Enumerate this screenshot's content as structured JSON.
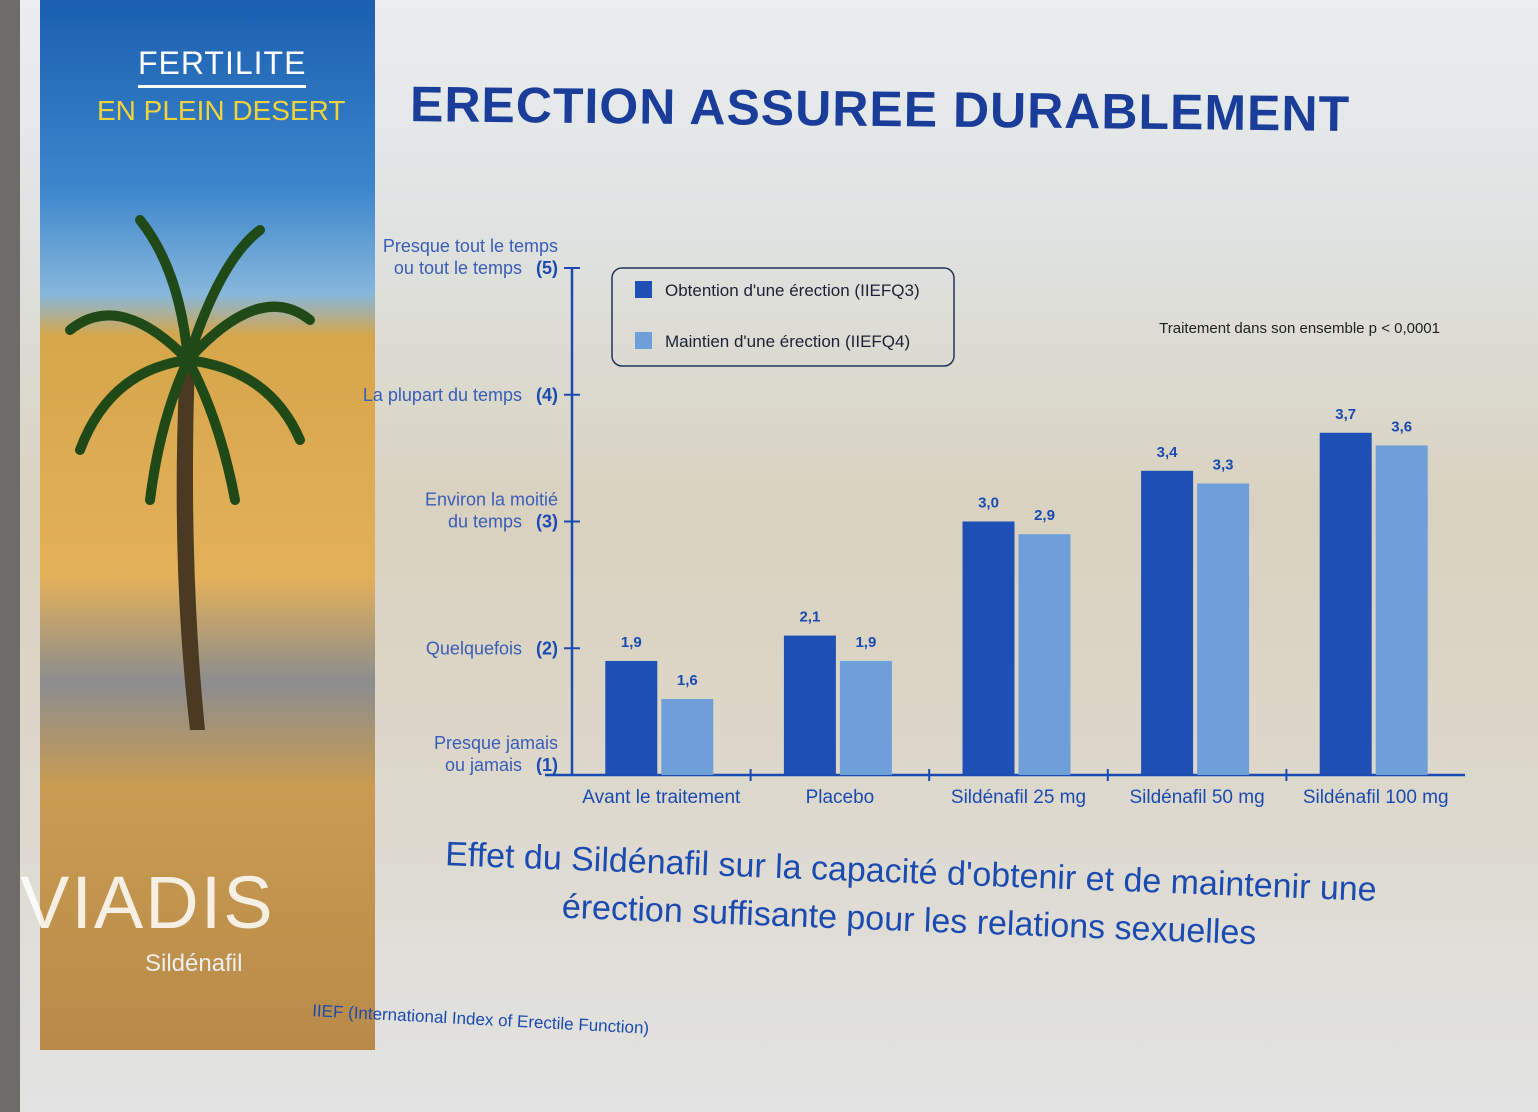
{
  "brand": {
    "line1": "FERTILITE",
    "line2": "EN PLEIN DESERT",
    "product": "VIADIS",
    "generic": "Sildénafil"
  },
  "title": "ERECTION ASSUREE DURABLEMENT",
  "caption": "Effet du Sildénafil sur la capacité d'obtenir et de maintenir une érection suffisante pour les relations sexuelles",
  "footnote": "IIEF (International Index of Erectile Function)",
  "chart_data": {
    "type": "bar",
    "title": "ERECTION ASSUREE DURABLEMENT",
    "annotation": "Traitement dans son ensemble p < 0,0001",
    "categories": [
      "Avant le traitement",
      "Placebo",
      "Sildénafil 25 mg",
      "Sildénafil 50 mg",
      "Sildénafil 100 mg"
    ],
    "series": [
      {
        "name": "Obtention d'une érection (IIEFQ3)",
        "color": "#1e4fb4",
        "values": [
          1.9,
          2.1,
          3.0,
          3.4,
          3.7
        ],
        "labels": [
          "1,9",
          "2,1",
          "3,0",
          "3,4",
          "3,7"
        ]
      },
      {
        "name": "Maintien d'une érection (IIEFQ4)",
        "color": "#6f9fd8",
        "values": [
          1.6,
          1.9,
          2.9,
          3.3,
          3.6
        ],
        "labels": [
          "1,6",
          "1,9",
          "2,9",
          "3,3",
          "3,6"
        ]
      }
    ],
    "ylim": [
      1,
      5
    ],
    "yticks": [
      {
        "value": 1,
        "label": [
          "Presque jamais",
          "ou jamais"
        ],
        "num": "(1)"
      },
      {
        "value": 2,
        "label": [
          "Quelquefois"
        ],
        "num": "(2)"
      },
      {
        "value": 3,
        "label": [
          "Environ la moitié",
          "du temps"
        ],
        "num": "(3)"
      },
      {
        "value": 4,
        "label": [
          "La plupart du temps"
        ],
        "num": "(4)"
      },
      {
        "value": 5,
        "label": [
          "Presque tout le temps",
          "ou tout le temps"
        ],
        "num": "(5)"
      }
    ],
    "legend_position": "top-left",
    "grid": false
  }
}
